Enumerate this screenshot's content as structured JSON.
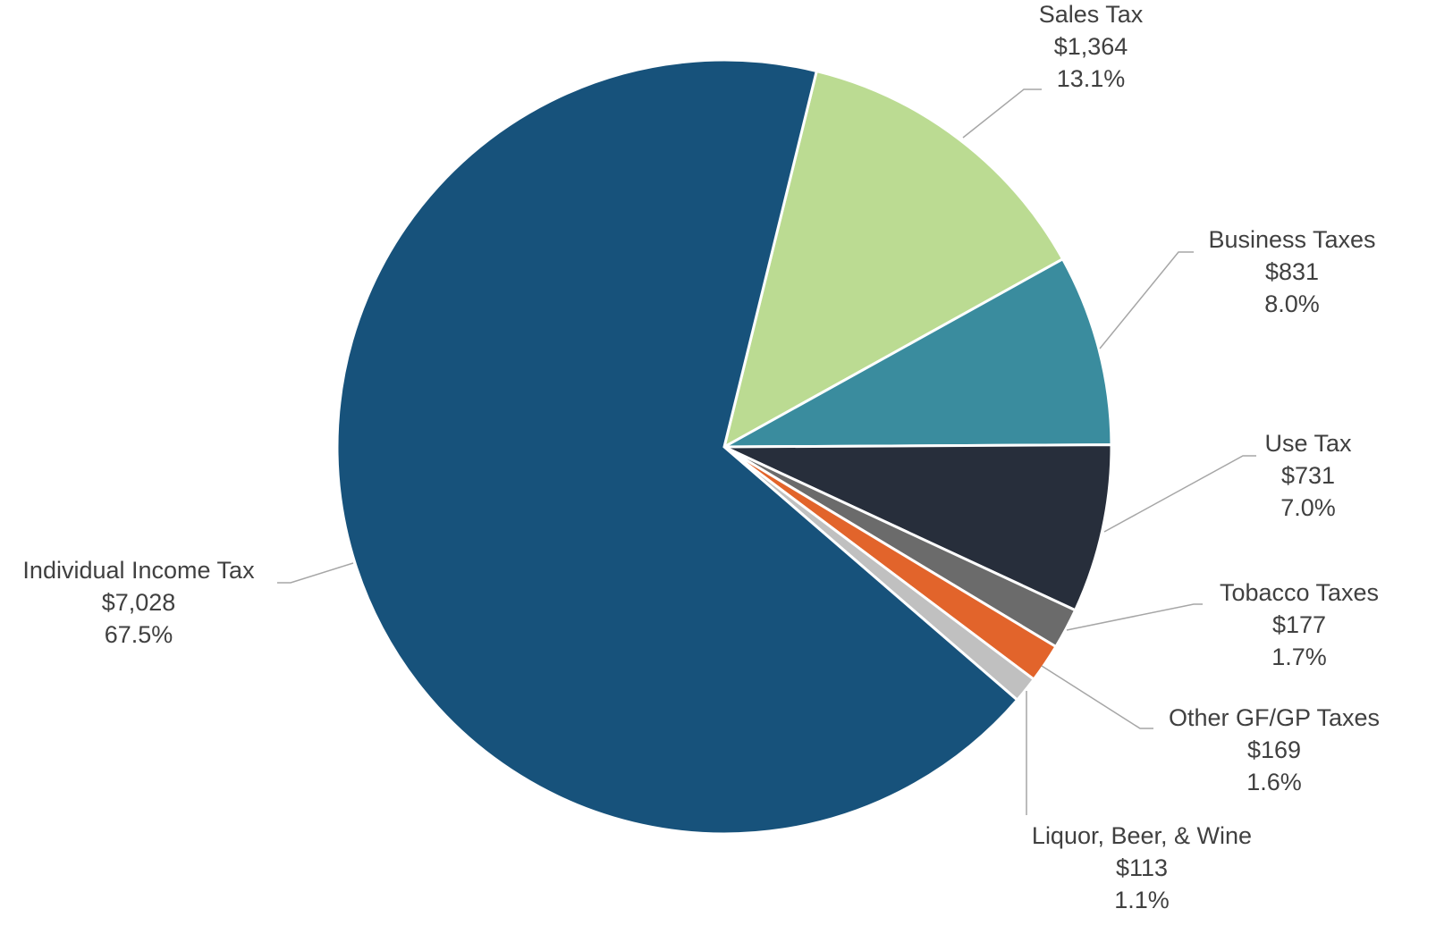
{
  "chart_data": {
    "type": "pie",
    "categories": [
      "Sales Tax",
      "Business Taxes",
      "Use Tax",
      "Tobacco Taxes",
      "Other GF/GP Taxes",
      "Liquor, Beer, & Wine",
      "Individual Income Tax"
    ],
    "values": [
      1364,
      831,
      731,
      177,
      169,
      113,
      7028
    ],
    "value_labels": [
      "$1,364",
      "$831",
      "$731",
      "$177",
      "$169",
      "$113",
      "$7,028"
    ],
    "shares": [
      13.1,
      8.0,
      7.0,
      1.7,
      1.6,
      1.1,
      67.5
    ],
    "share_labels": [
      "13.1%",
      "8.0%",
      "7.0%",
      "1.7%",
      "1.6%",
      "1.1%",
      "67.5%"
    ],
    "colors": [
      "#bbdb92",
      "#3a8c9e",
      "#272e3b",
      "#6b6b6b",
      "#e2642b",
      "#c0c0c0",
      "#17527b"
    ]
  }
}
